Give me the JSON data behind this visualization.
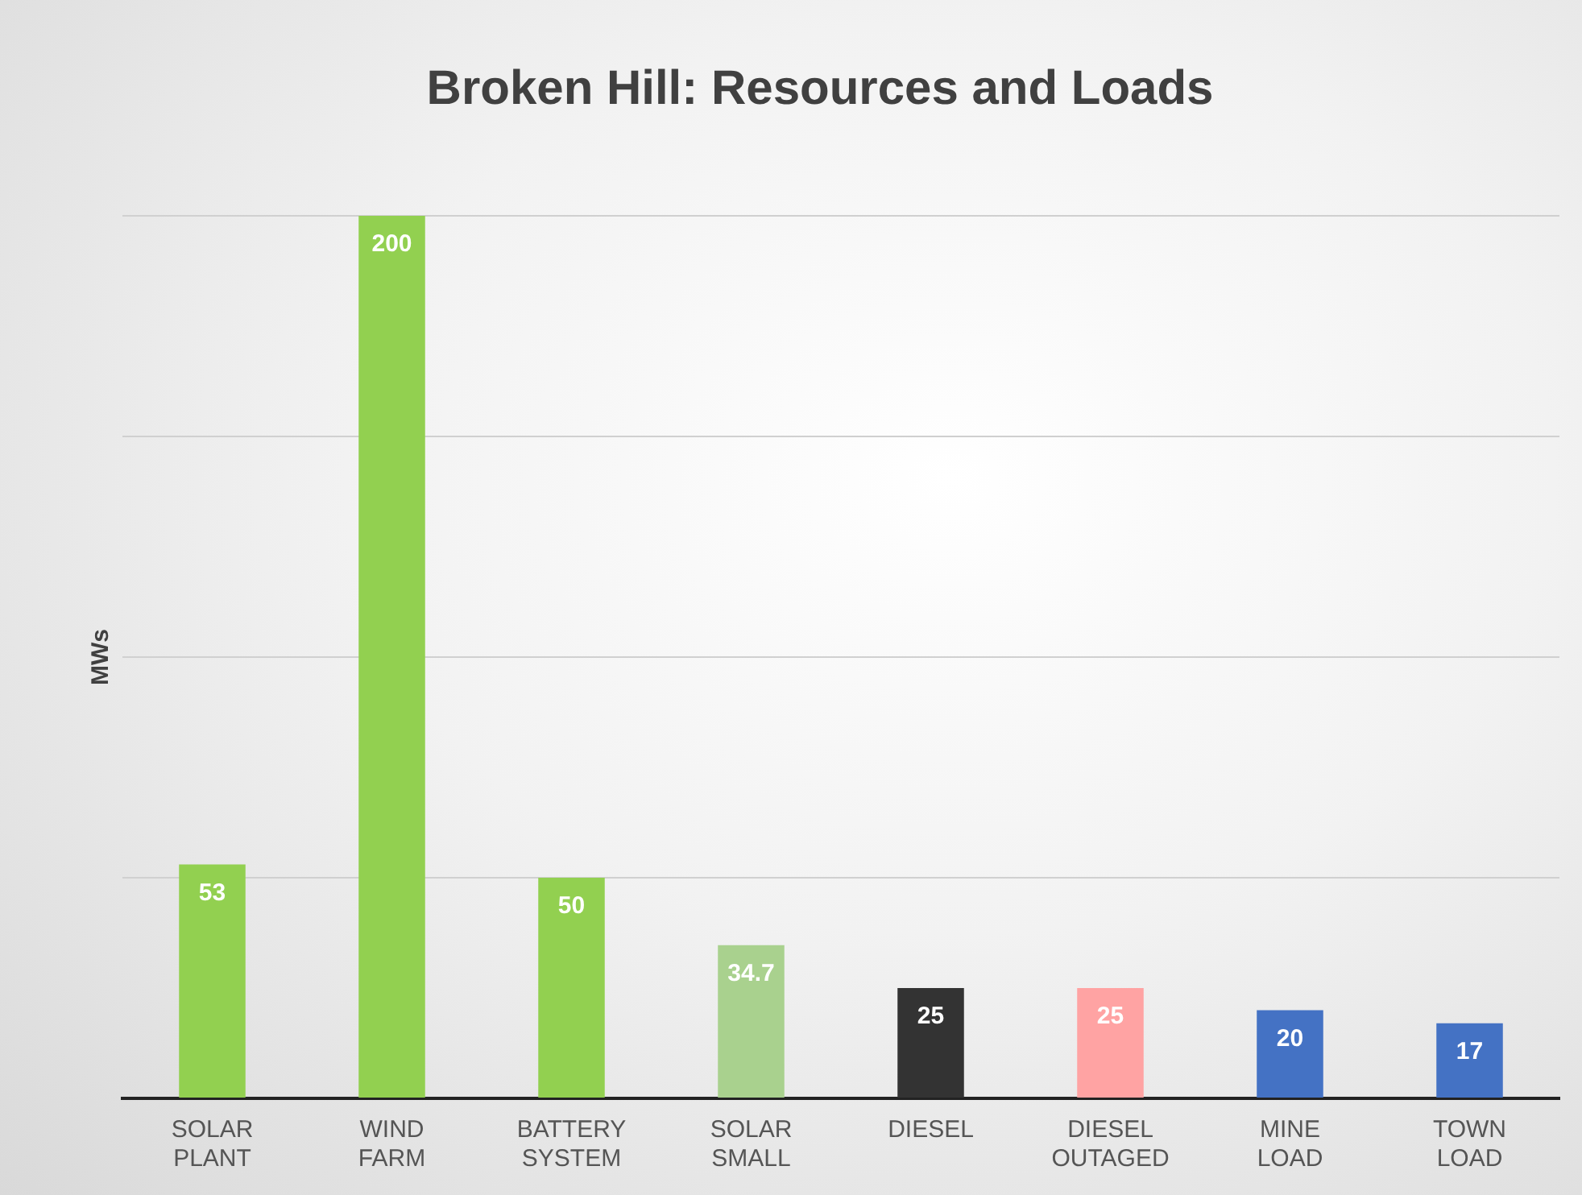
{
  "chart_data": {
    "type": "bar",
    "title": "Broken Hill: Resources and Loads",
    "ylabel": "MWs",
    "categories": [
      "SOLAR PLANT",
      "WIND FARM",
      "BATTERY SYSTEM",
      "SOLAR SMALL",
      "DIESEL",
      "DIESEL OUTAGED",
      "MINE LOAD",
      "TOWN LOAD"
    ],
    "values": [
      53,
      200,
      50,
      34.7,
      25,
      25,
      20,
      17
    ],
    "colors": [
      "#92d050",
      "#92d050",
      "#92d050",
      "#a9d18e",
      "#333333",
      "#ffa3a3",
      "#4472c4",
      "#4472c4"
    ],
    "ylim": [
      0,
      200
    ],
    "yticks": [
      {
        "value": 0,
        "label": null
      },
      {
        "value": 50,
        "label": null
      },
      {
        "value": 100,
        "label": null
      },
      {
        "value": 150,
        "label": null
      },
      {
        "value": 200,
        "label": null
      }
    ],
    "grid": "y",
    "tick_labels": "x",
    "data_labels": true
  }
}
